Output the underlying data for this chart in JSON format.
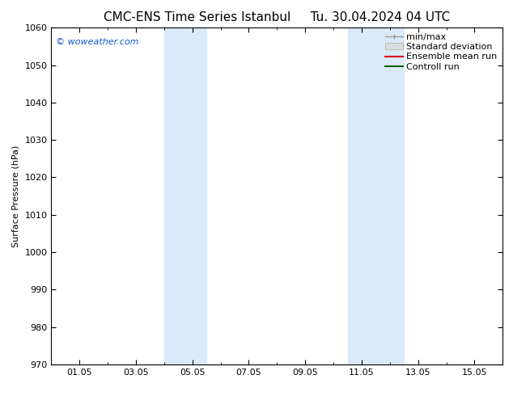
{
  "title": "CMC-ENS Time Series Istanbul",
  "title_right": "Tu. 30.04.2024 04 UTC",
  "ylabel": "Surface Pressure (hPa)",
  "ylim": [
    970,
    1060
  ],
  "yticks": [
    970,
    980,
    990,
    1000,
    1010,
    1020,
    1030,
    1040,
    1050,
    1060
  ],
  "xtick_labels": [
    "01.05",
    "03.05",
    "05.05",
    "07.05",
    "09.05",
    "11.05",
    "13.05",
    "15.05"
  ],
  "xtick_positions": [
    1,
    3,
    5,
    7,
    9,
    11,
    13,
    15
  ],
  "xlim": [
    0,
    16
  ],
  "shaded_bands": [
    {
      "x_start": 4.0,
      "x_end": 5.5
    },
    {
      "x_start": 10.5,
      "x_end": 12.5
    }
  ],
  "shade_color": "#daeaf8",
  "watermark_text": "© woweather.com",
  "watermark_color": "#1155cc",
  "legend_labels": [
    "min/max",
    "Standard deviation",
    "Ensemble mean run",
    "Controll run"
  ],
  "legend_colors": [
    "#999999",
    "#cccccc",
    "#dd0000",
    "#006600"
  ],
  "background_color": "#ffffff",
  "font_size_title": 11,
  "font_size_axis": 8,
  "font_size_legend": 8,
  "font_size_tick": 8
}
